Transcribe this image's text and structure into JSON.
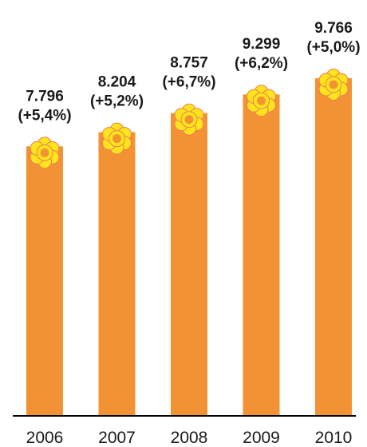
{
  "chart_data": {
    "type": "bar",
    "categories": [
      "2006",
      "2007",
      "2008",
      "2009",
      "2010"
    ],
    "values": [
      7796,
      8204,
      8757,
      9299,
      9766
    ],
    "value_labels": [
      "7.796",
      "8.204",
      "8.757",
      "9.299",
      "9.766"
    ],
    "change_labels": [
      "(+5,4%)",
      "(+5,2%)",
      "(+6,7%)",
      "(+6,2%)",
      "(+5,0%)"
    ],
    "title": "",
    "xlabel": "",
    "ylabel": "",
    "ylim": [
      0,
      9766
    ],
    "grid": false,
    "legend": "none",
    "bar_decoration": "flower-icon"
  },
  "colors": {
    "bar": "#F39235",
    "flower_petal": "#FFE51A",
    "flower_center": "#F39235",
    "axis": "#000000",
    "text": "#1a1a1a"
  }
}
